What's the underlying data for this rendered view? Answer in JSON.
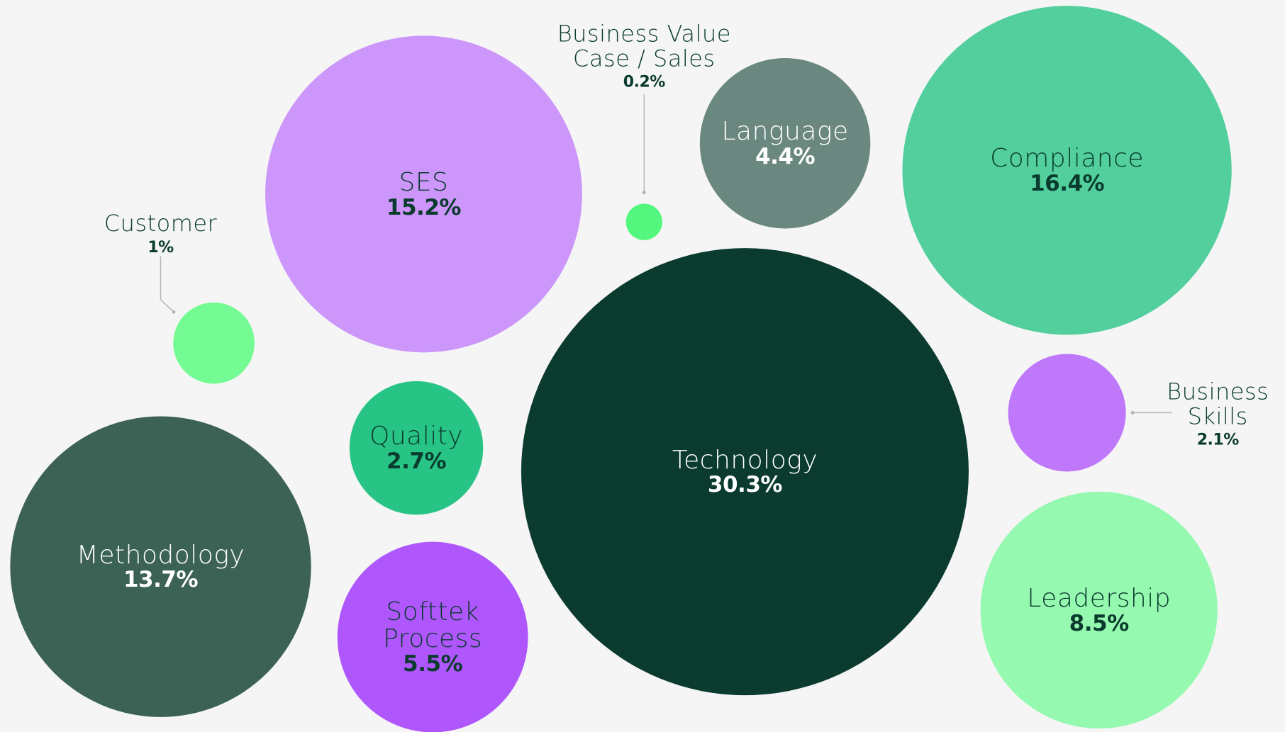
{
  "chart_data": {
    "type": "bubble",
    "categories": [
      "SES",
      "Customer",
      "Business Value Case / Sales",
      "Language",
      "Compliance",
      "Technology",
      "Business Skills",
      "Quality",
      "Methodology",
      "Softtek Process",
      "Leadership"
    ],
    "values": [
      15.2,
      1,
      0.2,
      4.4,
      16.4,
      30.3,
      2.1,
      2.7,
      13.7,
      5.5,
      8.5
    ],
    "value_labels": [
      "15.2%",
      "1%",
      "0.2%",
      "4.4%",
      "16.4%",
      "30.3%",
      "2.1%",
      "2.7%",
      "13.7%",
      "5.5%",
      "8.5%"
    ],
    "colors": [
      "#cc96fa",
      "#74fb93",
      "#53f77d",
      "#6a8880",
      "#52cf9c",
      "#0a3b2e",
      "#bf78fa",
      "#28c486",
      "#3b6255",
      "#af57fc",
      "#96f9b0"
    ]
  }
}
